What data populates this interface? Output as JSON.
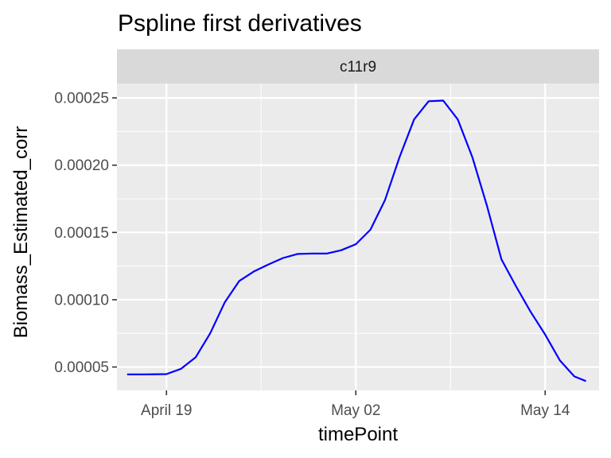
{
  "chart_data": {
    "type": "line",
    "title": "Pspline first derivatives",
    "facet_label": "c11r9",
    "xlabel": "timePoint",
    "ylabel": "Biomass_Estimated_corr",
    "x_ticks": [
      {
        "label": "April 19",
        "day": 0
      },
      {
        "label": "May 02",
        "day": 13
      },
      {
        "label": "May 14",
        "day": 26
      }
    ],
    "y_ticks": [
      {
        "label": "0.00005",
        "value": 5e-05
      },
      {
        "label": "0.00010",
        "value": 0.0001
      },
      {
        "label": "0.00015",
        "value": 0.00015
      },
      {
        "label": "0.00020",
        "value": 0.0002
      },
      {
        "label": "0.00025",
        "value": 0.00025
      }
    ],
    "xlim": [
      -3.4,
      29.7
    ],
    "ylim": [
      3.26e-05,
      0.0002607
    ],
    "grid": true,
    "series": [
      {
        "color": "#0000ff",
        "points": [
          [
            -2.7,
            4.45e-05
          ],
          [
            -1.5,
            4.45e-05
          ],
          [
            0.0,
            4.47e-05
          ],
          [
            1.0,
            4.87e-05
          ],
          [
            2.0,
            5.72e-05
          ],
          [
            3.0,
            7.5e-05
          ],
          [
            4.0,
            9.8e-05
          ],
          [
            5.0,
            0.000114
          ],
          [
            6.0,
            0.000121
          ],
          [
            7.0,
            0.0001262
          ],
          [
            8.0,
            0.000131
          ],
          [
            9.0,
            0.000134
          ],
          [
            10.0,
            0.0001343
          ],
          [
            11.0,
            0.0001343
          ],
          [
            12.0,
            0.0001368
          ],
          [
            13.0,
            0.0001413
          ],
          [
            14.0,
            0.000152
          ],
          [
            15.0,
            0.000174
          ],
          [
            16.0,
            0.000206
          ],
          [
            17.0,
            0.000234
          ],
          [
            18.0,
            0.0002475
          ],
          [
            19.0,
            0.000248
          ],
          [
            20.0,
            0.000234
          ],
          [
            21.0,
            0.000206
          ],
          [
            22.0,
            0.00017
          ],
          [
            23.0,
            0.00013
          ],
          [
            24.0,
            0.00011
          ],
          [
            25.0,
            9.1e-05
          ],
          [
            26.0,
            7.4e-05
          ],
          [
            27.0,
            5.5e-05
          ],
          [
            28.0,
            4.3e-05
          ],
          [
            28.8,
            3.95e-05
          ]
        ]
      }
    ]
  }
}
